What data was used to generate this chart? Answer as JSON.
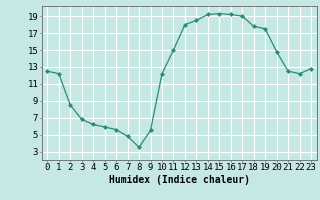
{
  "x": [
    0,
    1,
    2,
    3,
    4,
    5,
    6,
    7,
    8,
    9,
    10,
    11,
    12,
    13,
    14,
    15,
    16,
    17,
    18,
    19,
    20,
    21,
    22,
    23
  ],
  "y": [
    12.5,
    12.2,
    8.5,
    6.8,
    6.2,
    5.9,
    5.6,
    4.8,
    3.5,
    5.5,
    12.2,
    15.0,
    18.0,
    18.5,
    19.2,
    19.3,
    19.2,
    19.0,
    17.8,
    17.5,
    14.8,
    12.5,
    12.2,
    12.8
  ],
  "line_color": "#2d8b74",
  "marker": "D",
  "marker_size": 2,
  "bg_color": "#c5e8e5",
  "grid_color": "#ffffff",
  "xlabel": "Humidex (Indice chaleur)",
  "xlim": [
    -0.5,
    23.5
  ],
  "ylim": [
    2,
    20.2
  ],
  "yticks": [
    3,
    5,
    7,
    9,
    11,
    13,
    15,
    17,
    19
  ],
  "xtick_labels": [
    "0",
    "1",
    "2",
    "3",
    "4",
    "5",
    "6",
    "7",
    "8",
    "9",
    "10",
    "11",
    "12",
    "13",
    "14",
    "15",
    "16",
    "17",
    "18",
    "19",
    "20",
    "21",
    "22",
    "23"
  ],
  "xlabel_fontsize": 7,
  "tick_fontsize": 6.5
}
